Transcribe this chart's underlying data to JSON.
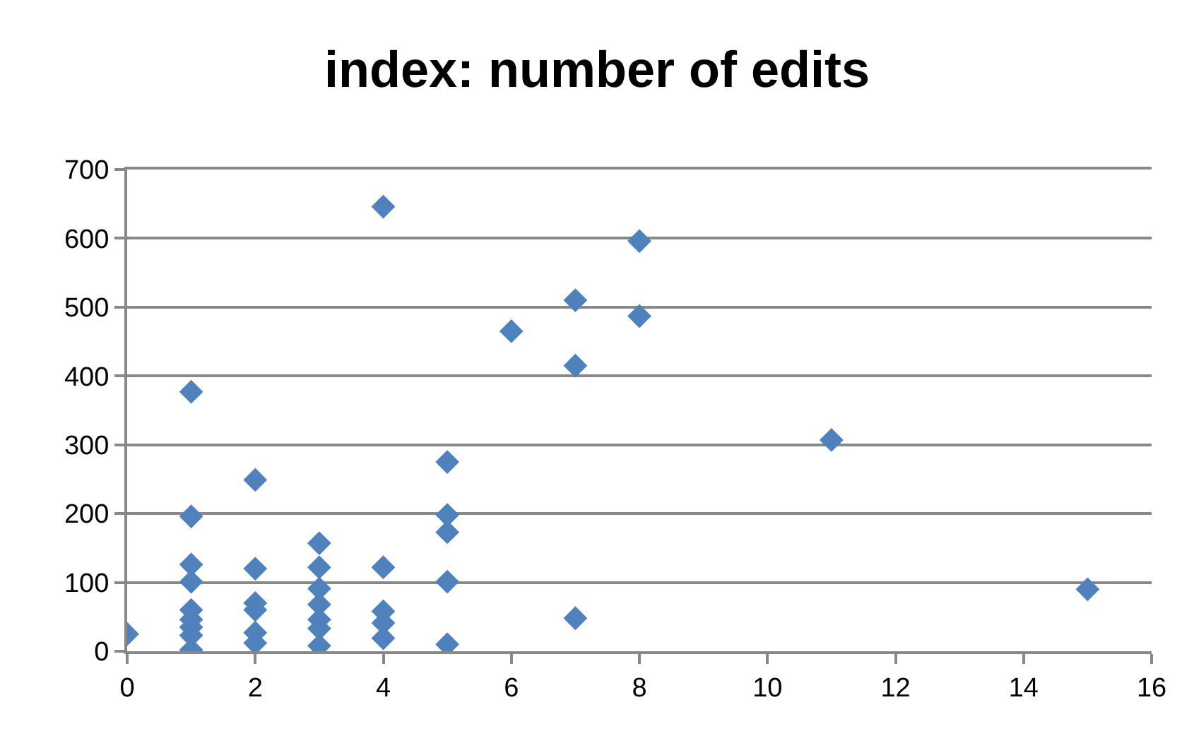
{
  "chart_data": {
    "type": "scatter",
    "title": "index: number of edits",
    "x": [
      0,
      1,
      1,
      1,
      1,
      1,
      1,
      1,
      1,
      1,
      2,
      2,
      2,
      2,
      2,
      2,
      3,
      3,
      3,
      3,
      3,
      3,
      3,
      4,
      4,
      4,
      4,
      4,
      5,
      5,
      5,
      5,
      5,
      6,
      7,
      7,
      7,
      8,
      8,
      11,
      15
    ],
    "values": [
      25,
      377,
      196,
      126,
      101,
      60,
      46,
      35,
      23,
      2,
      249,
      120,
      70,
      60,
      27,
      12,
      157,
      122,
      91,
      68,
      46,
      33,
      8,
      646,
      122,
      58,
      41,
      19,
      275,
      198,
      173,
      101,
      10,
      465,
      510,
      415,
      48,
      596,
      487,
      307,
      90
    ],
    "color": "#4f81bd",
    "marker": "diamond",
    "xlim": [
      0,
      16
    ],
    "xticks": [
      0,
      2,
      4,
      6,
      8,
      10,
      12,
      14,
      16
    ],
    "ylim": [
      0,
      700
    ],
    "yticks": [
      0,
      100,
      200,
      300,
      400,
      500,
      600,
      700
    ],
    "grid": "y"
  }
}
